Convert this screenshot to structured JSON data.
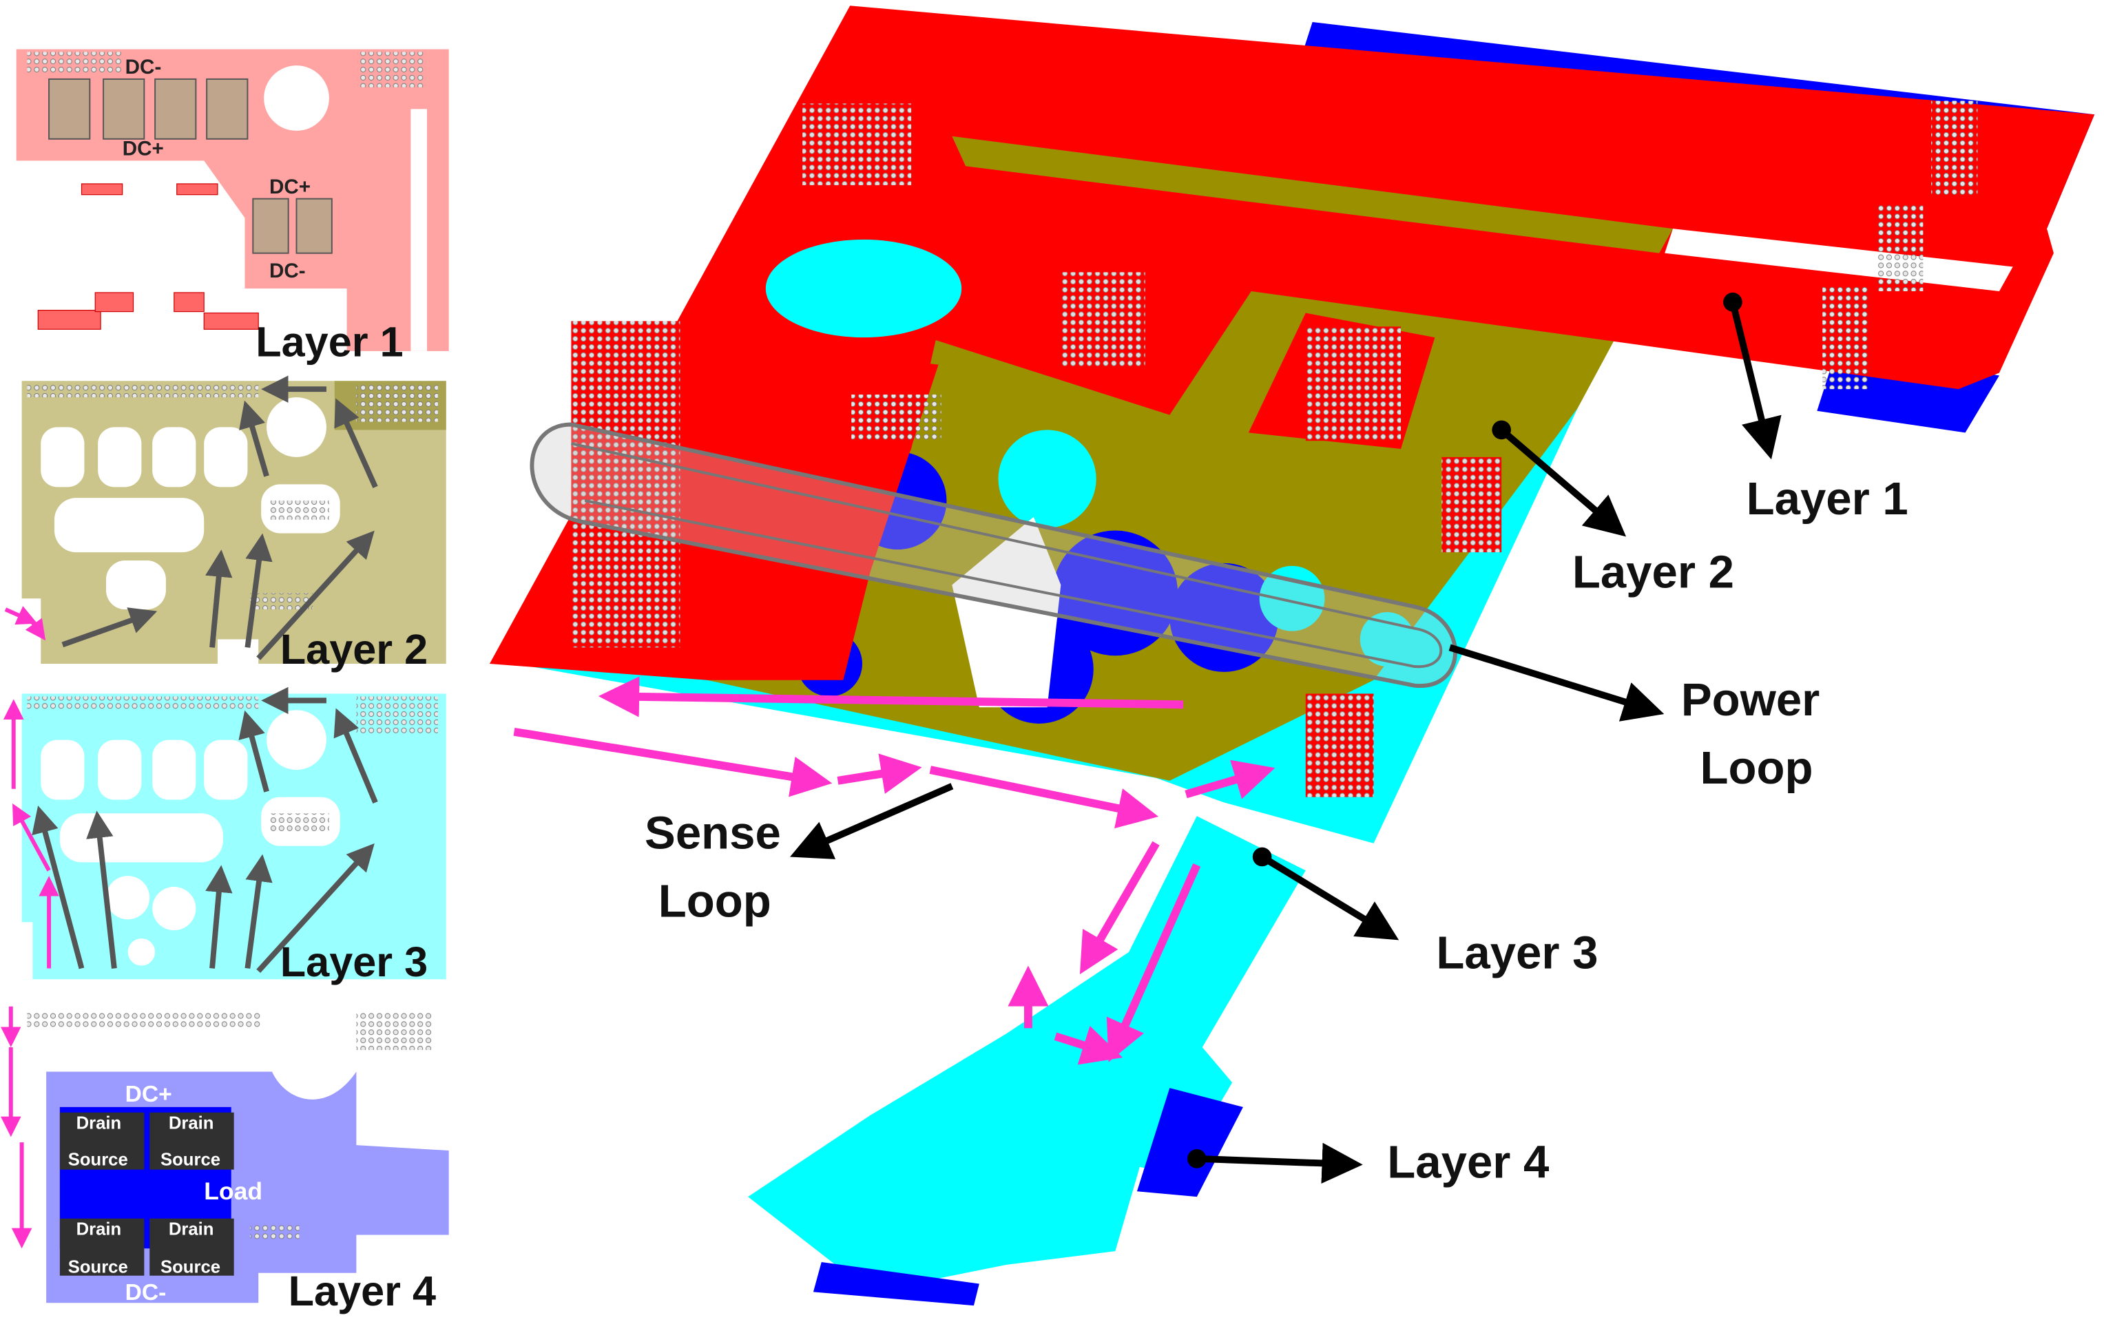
{
  "colors": {
    "layer1": "#ff0000",
    "layer1_light": "#ffa3a3",
    "layer2": "#9b9100",
    "layer2_light": "#cbc58c",
    "layer3": "#00ffff",
    "layer3_light": "#99ffff",
    "layer4": "#0000ff",
    "layer4_light": "#9a9aff",
    "sense_arrow": "#ff33cc",
    "power_arrow": "#555555",
    "via": "#d8d8d8"
  },
  "panels": {
    "layer1": {
      "title": "Layer 1",
      "tags": [
        "DC-",
        "DC+",
        "DC+",
        "DC-"
      ]
    },
    "layer2": {
      "title": "Layer 2"
    },
    "layer3": {
      "title": "Layer 3"
    },
    "layer4": {
      "title": "Layer 4",
      "dc_top": "DC+",
      "dc_bottom": "DC-",
      "load": "Load",
      "drain": "Drain",
      "source": "Source"
    }
  },
  "callouts": {
    "layer1": "Layer 1",
    "layer2": "Layer 2",
    "power_loop_line1": "Power",
    "power_loop_line2": "Loop",
    "sense_loop_line1": "Sense",
    "sense_loop_line2": "Loop",
    "layer3": "Layer 3",
    "layer4": "Layer 4"
  }
}
